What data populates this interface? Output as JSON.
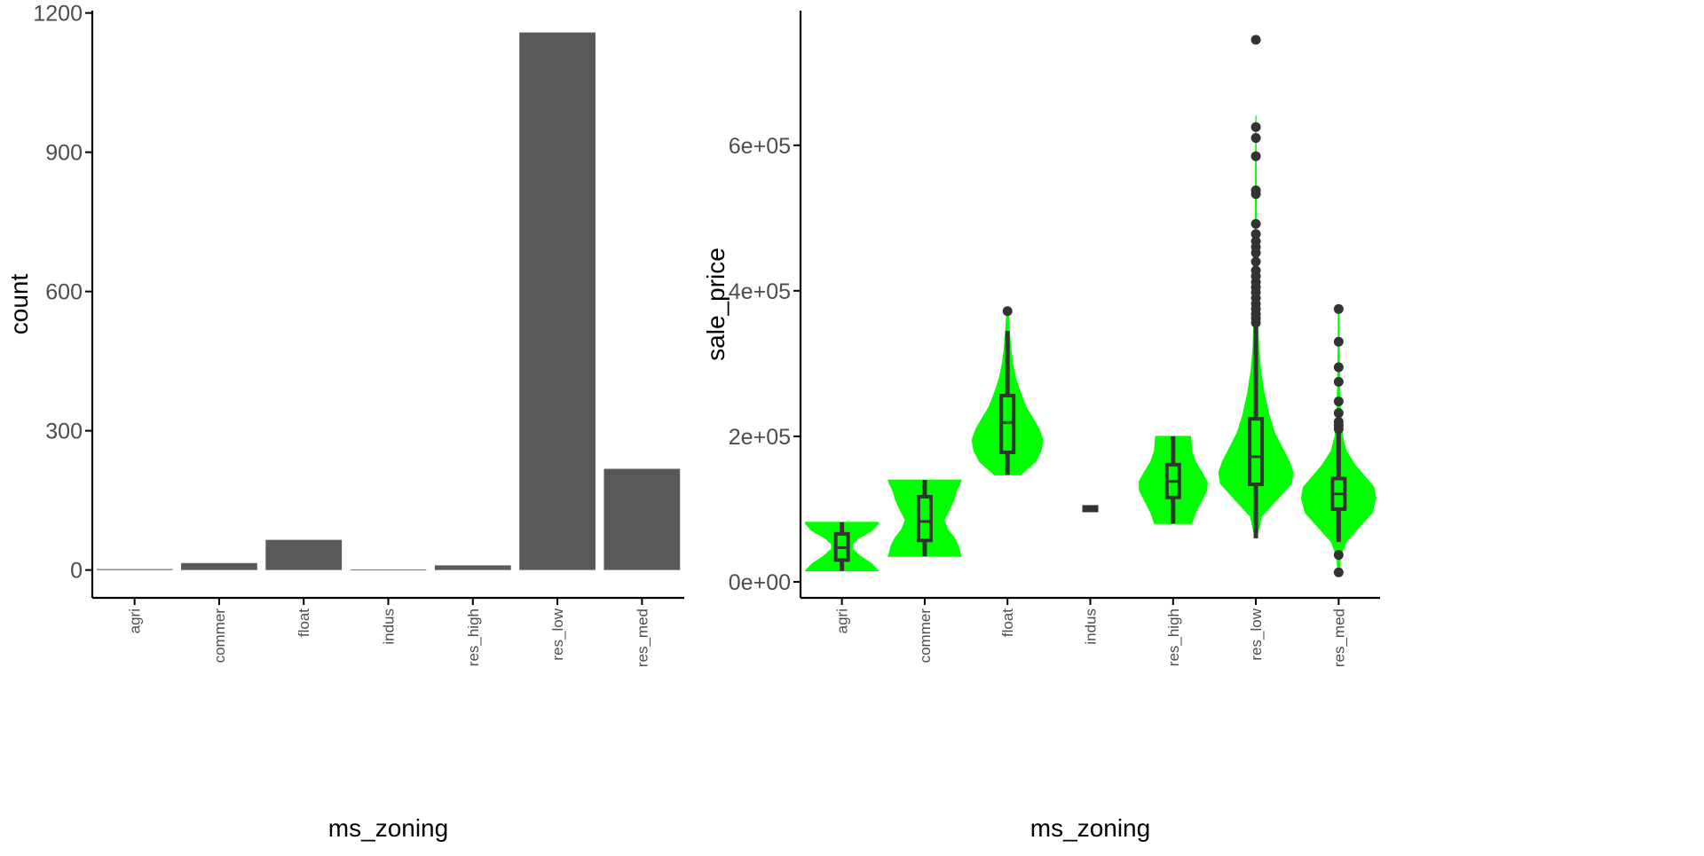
{
  "colors": {
    "bar_fill": "#595959",
    "violin_fill": "#00ff00",
    "box_stroke": "#333333",
    "axis": "#000000",
    "tick_label": "#4d4d4d"
  },
  "chart_data": [
    {
      "type": "bar",
      "title": "",
      "xlabel": "ms_zoning",
      "ylabel": "count",
      "categories": [
        "agri",
        "commer",
        "float",
        "indus",
        "res_high",
        "res_low",
        "res_med"
      ],
      "values": [
        2,
        15,
        65,
        1,
        10,
        1158,
        218
      ],
      "ylim": [
        -60,
        1205
      ],
      "yticks": [
        0,
        300,
        600,
        900,
        1200
      ],
      "ytick_labels": [
        "0",
        "300",
        "600",
        "900",
        "1200"
      ],
      "grid": false
    },
    {
      "type": "violin",
      "title": "",
      "xlabel": "ms_zoning",
      "ylabel": "sale_price",
      "categories": [
        "agri",
        "commer",
        "float",
        "indus",
        "res_high",
        "res_low",
        "res_med"
      ],
      "ylim": [
        -22000,
        785000
      ],
      "yticks": [
        0,
        200000,
        400000,
        600000
      ],
      "ytick_labels": [
        "0e+00",
        "2e+05",
        "4e+05",
        "6e+05"
      ],
      "grid": false,
      "groups": [
        {
          "name": "agri",
          "min": 15000,
          "q1": 30000,
          "median": 47000,
          "q3": 66000,
          "max": 82000,
          "whisker_low": 15000,
          "whisker_high": 82000,
          "outliers": [],
          "density": [
            [
              15000,
              0.98
            ],
            [
              25000,
              0.8
            ],
            [
              35000,
              0.5
            ],
            [
              45000,
              0.28
            ],
            [
              52000,
              0.28
            ],
            [
              60000,
              0.45
            ],
            [
              70000,
              0.8
            ],
            [
              80000,
              0.98
            ],
            [
              82000,
              0.98
            ]
          ]
        },
        {
          "name": "commer",
          "min": 35000,
          "q1": 57000,
          "median": 83000,
          "q3": 117000,
          "max": 140000,
          "whisker_low": 35000,
          "whisker_high": 140000,
          "outliers": [],
          "density": [
            [
              35000,
              0.98
            ],
            [
              40000,
              0.95
            ],
            [
              50000,
              0.9
            ],
            [
              60000,
              0.8
            ],
            [
              72000,
              0.62
            ],
            [
              85000,
              0.52
            ],
            [
              98000,
              0.65
            ],
            [
              112000,
              0.78
            ],
            [
              125000,
              0.85
            ],
            [
              135000,
              0.95
            ],
            [
              140000,
              0.98
            ]
          ]
        },
        {
          "name": "float",
          "min": 147000,
          "q1": 178000,
          "median": 219000,
          "q3": 256000,
          "max": 345000,
          "whisker_low": 147000,
          "whisker_high": 345000,
          "outliers": [
            372000
          ],
          "density": [
            [
              147000,
              0.35
            ],
            [
              165000,
              0.75
            ],
            [
              180000,
              0.9
            ],
            [
              195000,
              0.95
            ],
            [
              210000,
              0.85
            ],
            [
              225000,
              0.68
            ],
            [
              240000,
              0.5
            ],
            [
              260000,
              0.35
            ],
            [
              280000,
              0.22
            ],
            [
              300000,
              0.14
            ],
            [
              320000,
              0.09
            ],
            [
              345000,
              0.05
            ],
            [
              372000,
              0.02
            ]
          ]
        },
        {
          "name": "indus",
          "min": 103000,
          "q1": 103000,
          "median": 103000,
          "q3": 103000,
          "max": 103000,
          "whisker_low": 103000,
          "whisker_high": 103000,
          "outliers": [],
          "density": []
        },
        {
          "name": "res_high",
          "min": 80000,
          "q1": 116000,
          "median": 138000,
          "q3": 161000,
          "max": 200000,
          "whisker_low": 80000,
          "whisker_high": 200000,
          "outliers": [],
          "density": [
            [
              80000,
              0.5
            ],
            [
              95000,
              0.6
            ],
            [
              110000,
              0.75
            ],
            [
              125000,
              0.9
            ],
            [
              137000,
              0.92
            ],
            [
              150000,
              0.78
            ],
            [
              165000,
              0.6
            ],
            [
              180000,
              0.5
            ],
            [
              195000,
              0.48
            ],
            [
              200000,
              0.47
            ]
          ]
        },
        {
          "name": "res_low",
          "min": 60000,
          "q1": 134000,
          "median": 172000,
          "q3": 224000,
          "max": 352000,
          "whisker_low": 60000,
          "whisker_high": 352000,
          "outliers": [
            356000,
            362000,
            368000,
            375000,
            382000,
            390000,
            398000,
            405000,
            412000,
            420000,
            428000,
            440000,
            452000,
            460000,
            468000,
            478000,
            492000,
            533000,
            538000,
            585000,
            610000,
            625000,
            745000
          ],
          "density": [
            [
              60000,
              0.02
            ],
            [
              90000,
              0.15
            ],
            [
              115000,
              0.6
            ],
            [
              135000,
              0.95
            ],
            [
              150000,
              1.0
            ],
            [
              165000,
              0.9
            ],
            [
              185000,
              0.7
            ],
            [
              205000,
              0.5
            ],
            [
              230000,
              0.35
            ],
            [
              260000,
              0.22
            ],
            [
              290000,
              0.13
            ],
            [
              320000,
              0.08
            ],
            [
              360000,
              0.05
            ],
            [
              420000,
              0.03
            ],
            [
              500000,
              0.015
            ],
            [
              580000,
              0.01
            ],
            [
              640000,
              0.005
            ]
          ]
        },
        {
          "name": "res_med",
          "min": 55000,
          "q1": 100000,
          "median": 121000,
          "q3": 142000,
          "max": 205000,
          "whisker_low": 55000,
          "whisker_high": 205000,
          "outliers": [
            13000,
            37000,
            210000,
            215000,
            220000,
            232000,
            248000,
            275000,
            295000,
            330000,
            375000
          ],
          "density": [
            [
              13000,
              0.02
            ],
            [
              35000,
              0.05
            ],
            [
              55000,
              0.2
            ],
            [
              75000,
              0.55
            ],
            [
              95000,
              0.9
            ],
            [
              115000,
              1.0
            ],
            [
              130000,
              0.95
            ],
            [
              145000,
              0.7
            ],
            [
              160000,
              0.45
            ],
            [
              180000,
              0.2
            ],
            [
              200000,
              0.1
            ],
            [
              230000,
              0.05
            ],
            [
              270000,
              0.03
            ],
            [
              330000,
              0.015
            ],
            [
              375000,
              0.01
            ]
          ]
        }
      ]
    }
  ]
}
